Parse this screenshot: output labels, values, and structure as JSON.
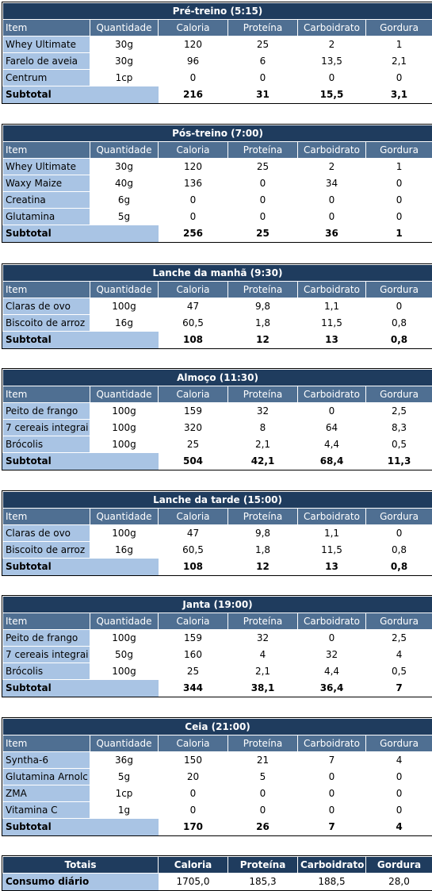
{
  "columns": [
    "Item",
    "Quantidade",
    "Caloria",
    "Proteína",
    "Carboidrato",
    "Gordura"
  ],
  "subtotal_label": "Subtotal",
  "meals": [
    {
      "title": "Pré-treino (5:15)",
      "rows": [
        [
          "Whey Ultimate",
          "30g",
          "120",
          "25",
          "2",
          "1"
        ],
        [
          "Farelo de aveia",
          "30g",
          "96",
          "6",
          "13,5",
          "2,1"
        ],
        [
          "Centrum",
          "1cp",
          "0",
          "0",
          "0",
          "0"
        ]
      ],
      "subtotal": [
        "216",
        "31",
        "15,5",
        "3,1"
      ]
    },
    {
      "title": "Pós-treino (7:00)",
      "rows": [
        [
          "Whey Ultimate",
          "30g",
          "120",
          "25",
          "2",
          "1"
        ],
        [
          "Waxy Maize",
          "40g",
          "136",
          "0",
          "34",
          "0"
        ],
        [
          "Creatina",
          "6g",
          "0",
          "0",
          "0",
          "0"
        ],
        [
          "Glutamina",
          "5g",
          "0",
          "0",
          "0",
          "0"
        ]
      ],
      "subtotal": [
        "256",
        "25",
        "36",
        "1"
      ]
    },
    {
      "title": "Lanche da manhã (9:30)",
      "rows": [
        [
          "Claras de ovo",
          "100g",
          "47",
          "9,8",
          "1,1",
          "0"
        ],
        [
          "Biscoito de arroz",
          "16g",
          "60,5",
          "1,8",
          "11,5",
          "0,8"
        ]
      ],
      "subtotal": [
        "108",
        "12",
        "13",
        "0,8"
      ]
    },
    {
      "title": "Almoço (11:30)",
      "rows": [
        [
          "Peito de frango",
          "100g",
          "159",
          "32",
          "0",
          "2,5"
        ],
        [
          "7 cereais integrai",
          "100g",
          "320",
          "8",
          "64",
          "8,3"
        ],
        [
          "Brócolis",
          "100g",
          "25",
          "2,1",
          "4,4",
          "0,5"
        ]
      ],
      "subtotal": [
        "504",
        "42,1",
        "68,4",
        "11,3"
      ]
    },
    {
      "title": "Lanche da tarde (15:00)",
      "rows": [
        [
          "Claras de ovo",
          "100g",
          "47",
          "9,8",
          "1,1",
          "0"
        ],
        [
          "Biscoito de arroz",
          "16g",
          "60,5",
          "1,8",
          "11,5",
          "0,8"
        ]
      ],
      "subtotal": [
        "108",
        "12",
        "13",
        "0,8"
      ]
    },
    {
      "title": "Janta (19:00)",
      "rows": [
        [
          "Peito de frango",
          "100g",
          "159",
          "32",
          "0",
          "2,5"
        ],
        [
          "7 cereais integrai",
          "50g",
          "160",
          "4",
          "32",
          "4"
        ],
        [
          "Brócolis",
          "100g",
          "25",
          "2,1",
          "4,4",
          "0,5"
        ]
      ],
      "subtotal": [
        "344",
        "38,1",
        "36,4",
        "7"
      ]
    },
    {
      "title": "Ceia (21:00)",
      "rows": [
        [
          "Syntha-6",
          "36g",
          "150",
          "21",
          "7",
          "4"
        ],
        [
          "Glutamina Arnolc",
          "5g",
          "20",
          "5",
          "0",
          "0"
        ],
        [
          "ZMA",
          "1cp",
          "0",
          "0",
          "0",
          "0"
        ],
        [
          "Vitamina C",
          "1g",
          "0",
          "0",
          "0",
          "0"
        ]
      ],
      "subtotal": [
        "170",
        "26",
        "7",
        "4"
      ]
    }
  ],
  "totals": {
    "header": [
      "Totais",
      "Caloria",
      "Proteína",
      "Carboidrato",
      "Gordura"
    ],
    "label": "Consumo diário",
    "values": [
      "1705,0",
      "185,3",
      "188,5",
      "28,0"
    ]
  }
}
